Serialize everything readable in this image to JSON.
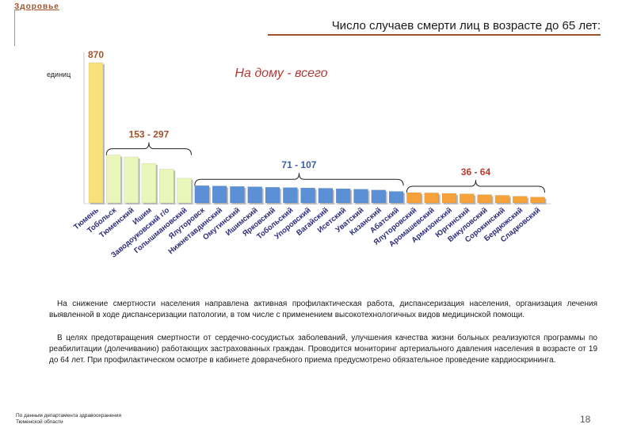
{
  "header": {
    "section": "Здоровье",
    "title": "Число случаев смерти лиц в возрасте до 65 лет:"
  },
  "chart_data": {
    "type": "bar",
    "title": "На дому - всего",
    "ylabel": "единиц",
    "ylim": [
      0,
      900
    ],
    "categories": [
      "Тюмень",
      "Тобольск",
      "Тюменский",
      "Ишим",
      "Заводоуковский г/о",
      "Голышмановский",
      "Ялуторовск",
      "Нижнетавдинский",
      "Омутинский",
      "Ишимский",
      "Ярковский",
      "Тобольский",
      "Упоровский",
      "Вагайский",
      "Исетский",
      "Уватский",
      "Казанский",
      "Абатский",
      "Ялуторовский",
      "Аромашевский",
      "Армизонский",
      "Юргинский",
      "Викуловский",
      "Сорокинский",
      "Бердюжский",
      "Сладковский"
    ],
    "values": [
      870,
      297,
      285,
      245,
      210,
      153,
      107,
      105,
      102,
      100,
      97,
      95,
      93,
      91,
      88,
      85,
      80,
      71,
      64,
      62,
      59,
      56,
      51,
      47,
      41,
      36
    ],
    "colors": [
      "#f7e27a",
      "#eaf7ba",
      "#eaf7ba",
      "#eaf7ba",
      "#eaf7ba",
      "#eaf7ba",
      "#5b8fd6",
      "#5b8fd6",
      "#5b8fd6",
      "#5b8fd6",
      "#5b8fd6",
      "#5b8fd6",
      "#5b8fd6",
      "#5b8fd6",
      "#5b8fd6",
      "#5b8fd6",
      "#5b8fd6",
      "#5b8fd6",
      "#f5a23b",
      "#f5a23b",
      "#f5a23b",
      "#f5a23b",
      "#f5a23b",
      "#f5a23b",
      "#f5a23b",
      "#f5a23b"
    ],
    "annotations": [
      {
        "label": "870",
        "from": 0,
        "to": 0,
        "color": "#a0522d",
        "brace": false
      },
      {
        "label": "153 - 297",
        "from": 1,
        "to": 5,
        "color": "#a0522d",
        "brace": true
      },
      {
        "label": "71 - 107",
        "from": 6,
        "to": 17,
        "color": "#3a5fa8",
        "brace": true
      },
      {
        "label": "36 - 64",
        "from": 18,
        "to": 25,
        "color": "#c0392b",
        "brace": true
      }
    ]
  },
  "body": {
    "paragraph1": "На снижение смертности населения направлена активная профилактическая работа, диспансеризация населения, организация лечения выявленной в ходе диспансеризации патологии, в том числе с применением высокотехнологичных видов медицинской помощи.",
    "paragraph2": "В целях предотвращения смертности от сердечно-сосудистых заболеваний, улучшения качества жизни больных реализуются программы по реабилитации (долечиванию) работающих застрахованных граждан. Проводится мониторинг артериального давления населения в возрасте от 19 до 64 лет. При профилактическом осмотре в кабинете доврачебного приема предусмотрено обязательное проведение кардиоскрининга."
  },
  "footer": {
    "source_line1": "По данным департамента здравоохранения",
    "source_line2": "Тюменской области",
    "page_number": "18"
  }
}
